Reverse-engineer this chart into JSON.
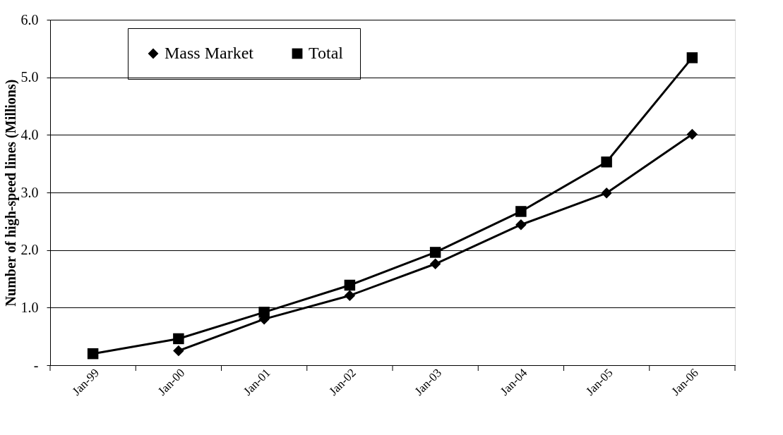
{
  "chart_data": {
    "type": "line",
    "ylabel": "Number of high-speed lines (Millions)",
    "categories": [
      "Jan-99",
      "Jan-00",
      "Jan-01",
      "Jan-02",
      "Jan-03",
      "Jan-04",
      "Jan-05",
      "Jan-06"
    ],
    "series": [
      {
        "name": "Mass Market",
        "color": "#000000",
        "marker": "diamond",
        "values": [
          null,
          0.25,
          0.8,
          1.21,
          1.76,
          2.44,
          2.99,
          4.01
        ]
      },
      {
        "name": "Total",
        "color": "#000000",
        "marker": "square",
        "values": [
          0.2,
          0.46,
          0.92,
          1.39,
          1.96,
          2.67,
          3.53,
          5.34
        ]
      }
    ],
    "ylim": [
      0,
      6
    ],
    "yticks": [
      {
        "value": 0,
        "label": "-"
      },
      {
        "value": 1,
        "label": "1.0"
      },
      {
        "value": 2,
        "label": "2.0"
      },
      {
        "value": 3,
        "label": "3.0"
      },
      {
        "value": 4,
        "label": "4.0"
      },
      {
        "value": 5,
        "label": "5.0"
      },
      {
        "value": 6,
        "label": "6.0"
      }
    ],
    "grid": "y",
    "legend": "top left",
    "line_style": "solid"
  }
}
